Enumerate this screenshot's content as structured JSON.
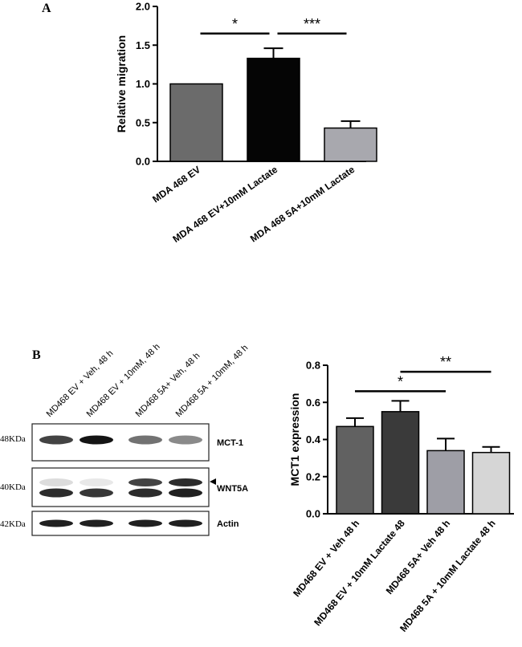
{
  "panels": {
    "a_label": "A",
    "b_label": "B"
  },
  "chart_data": [
    {
      "type": "bar",
      "panel": "A",
      "ylabel": "Relative migration",
      "ylim": [
        0,
        2.0
      ],
      "yticks": [
        "0.0",
        "0.5",
        "1.0",
        "1.5",
        "2.0"
      ],
      "categories": [
        "MDA 468 EV",
        "MDA 468 EV+10mM Lactate",
        "MDA 468 5A+10mM Lactate"
      ],
      "values": [
        1.0,
        1.33,
        0.43
      ],
      "errors": [
        0,
        0.13,
        0.09
      ],
      "colors": [
        "#6b6b6b",
        "#050505",
        "#a8a8ae"
      ],
      "significance": [
        {
          "from": 0,
          "to": 1,
          "y": 1.65,
          "label": "*"
        },
        {
          "from": 1,
          "to": 2,
          "y": 1.65,
          "label": "***"
        }
      ],
      "grid": false
    },
    {
      "type": "bar",
      "panel": "B",
      "ylabel": "MCT1 expression",
      "ylim": [
        0,
        0.8
      ],
      "yticks": [
        "0.0",
        "0.2",
        "0.4",
        "0.6",
        "0.8"
      ],
      "categories": [
        "MD468 EV + Veh 48 h",
        "MD468 EV + 10mM Lactate 48",
        "MD468 5A+ Veh 48 h",
        "MD468 5A + 10mM Lactate 48 h"
      ],
      "values": [
        0.47,
        0.55,
        0.34,
        0.33
      ],
      "errors": [
        0.045,
        0.058,
        0.065,
        0.03
      ],
      "colors": [
        "#616161",
        "#3a3a3a",
        "#9e9ea6",
        "#d6d6d6"
      ],
      "significance": [
        {
          "from": 0,
          "to": 2,
          "y": 0.66,
          "label": "*"
        },
        {
          "from": 1,
          "to": 3,
          "y": 0.765,
          "label": "**"
        }
      ],
      "grid": false
    }
  ],
  "blot": {
    "lanes": [
      "MD468 EV + Veh, 48 h",
      "MD468 EV + 10mM, 48 h",
      "MD468 5A+ Veh, 48 h",
      "MD468 5A + 10mM, 48 h"
    ],
    "rows": [
      {
        "kda": "48KDa",
        "name": "MCT-1",
        "intensities": [
          0.8,
          1.0,
          0.6,
          0.5
        ]
      },
      {
        "kda": "40KDa",
        "name": "WNT5A",
        "intensities": [
          0.9,
          0.85,
          0.9,
          0.95
        ],
        "upper_band": [
          0.15,
          0.1,
          0.8,
          0.9
        ]
      },
      {
        "kda": "42KDa",
        "name": "Actin",
        "intensities": [
          0.95,
          0.95,
          0.95,
          0.95
        ]
      }
    ]
  }
}
